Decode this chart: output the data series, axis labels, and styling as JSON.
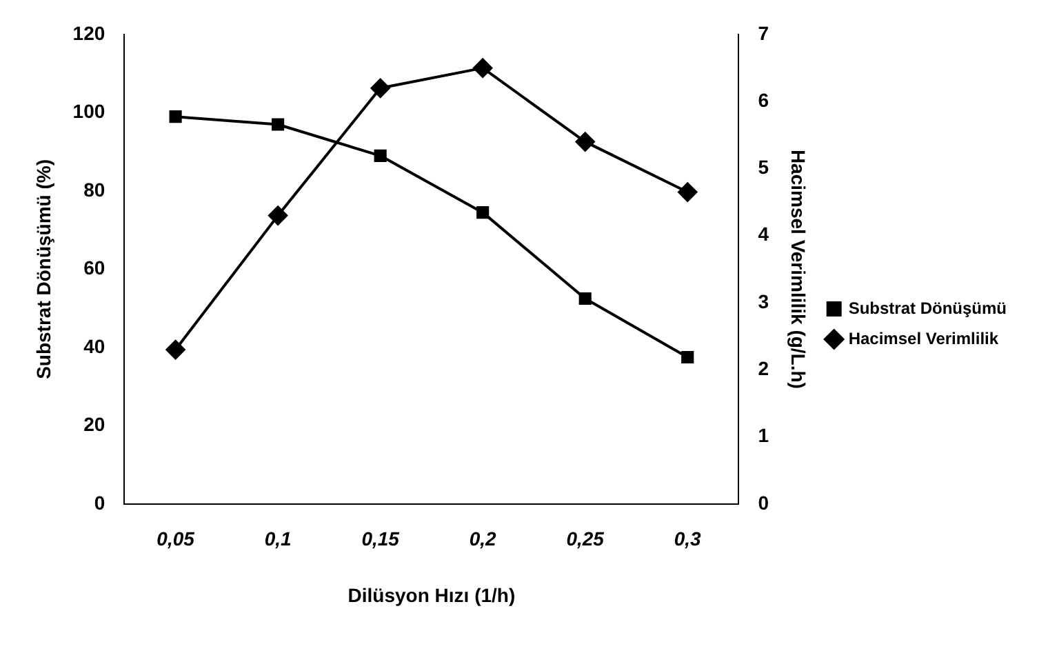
{
  "chart_data": {
    "type": "line",
    "xlabel": "Dilüsyon Hızı (1/h)",
    "ylabel": "Substrat Dönüşümü (%)",
    "y2label": "Hacimsel Verimlilik (g/L.h)",
    "categories": [
      "0,05",
      "0,1",
      "0,15",
      "0,2",
      "0,25",
      "0,3"
    ],
    "series": [
      {
        "name": "Substrat Dönüşümü",
        "color": "#000000",
        "marker": "square",
        "values": [
          99,
          97,
          89,
          74.5,
          52.5,
          37.5
        ]
      },
      {
        "name": "Hacimsel Verimlilik",
        "color": "#000000",
        "marker": "diamond",
        "axis": "y2",
        "values": [
          2.3,
          4.3,
          6.2,
          6.5,
          5.4,
          4.65
        ]
      }
    ],
    "ylim": [
      0,
      120
    ],
    "yticks": [
      0,
      20,
      40,
      60,
      80,
      100,
      120
    ],
    "y2lim": [
      0,
      7
    ],
    "y2ticks": [
      0,
      1,
      2,
      3,
      4,
      5,
      6,
      7
    ],
    "grid": false,
    "legend": "right",
    "line_style": "solid"
  }
}
